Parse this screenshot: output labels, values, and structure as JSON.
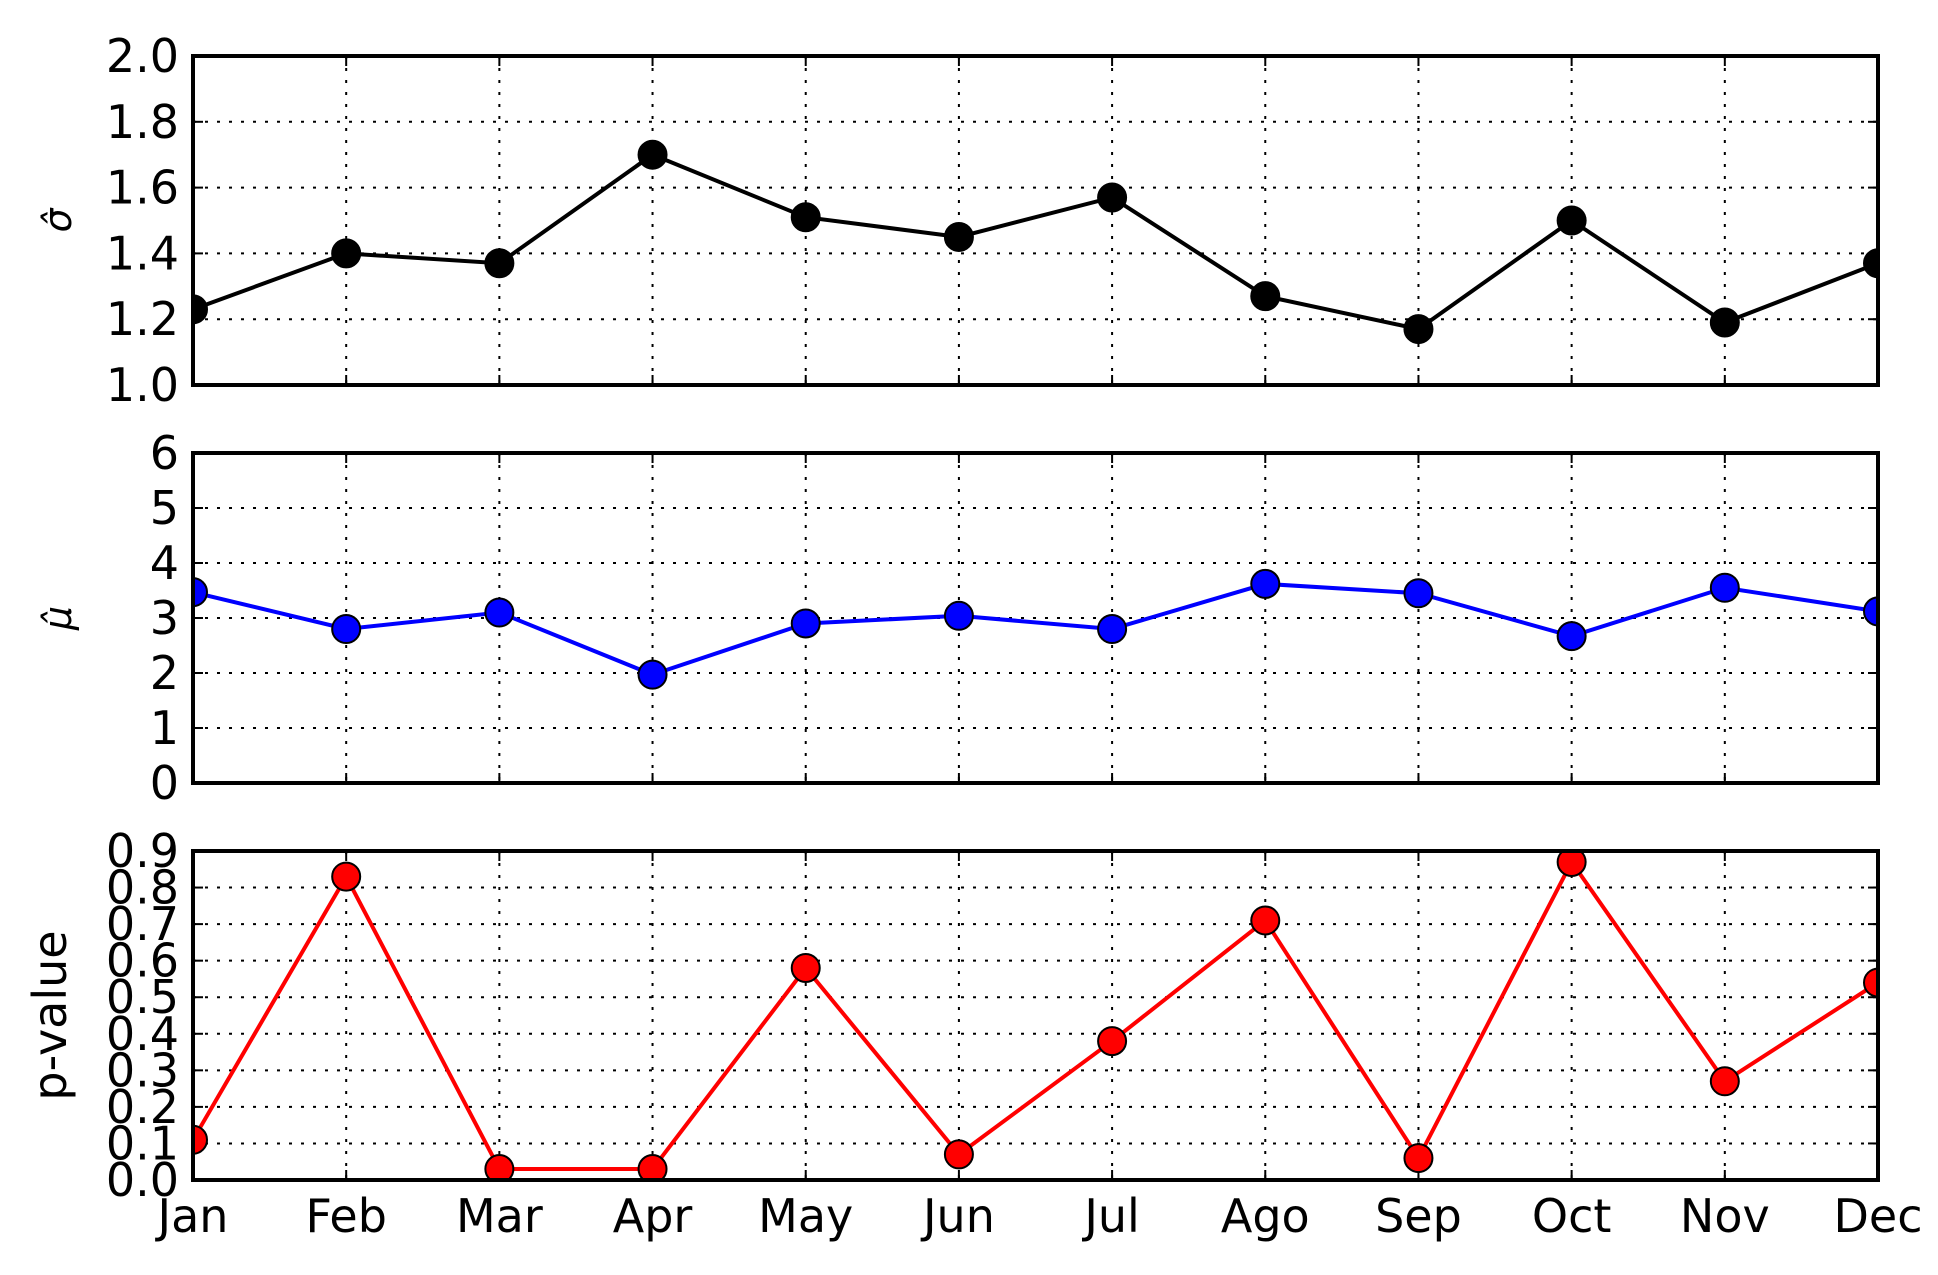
{
  "chart_data": [
    {
      "type": "line",
      "categories": [
        "Jan",
        "Feb",
        "Mar",
        "Apr",
        "May",
        "Jun",
        "Jul",
        "Ago",
        "Sep",
        "Oct",
        "Nov",
        "Dec"
      ],
      "ylabel": "σ̂",
      "ylim": [
        1.0,
        2.0
      ],
      "yticks": [
        "1.0",
        "1.2",
        "1.4",
        "1.6",
        "1.8",
        "2.0"
      ],
      "grid": true,
      "series": [
        {
          "color": "#000000",
          "marker_color": "#000000",
          "values": [
            1.23,
            1.4,
            1.37,
            1.7,
            1.51,
            1.45,
            1.57,
            1.27,
            1.17,
            1.5,
            1.19,
            1.37
          ]
        }
      ]
    },
    {
      "type": "line",
      "categories": [
        "Jan",
        "Feb",
        "Mar",
        "Apr",
        "May",
        "Jun",
        "Jul",
        "Ago",
        "Sep",
        "Oct",
        "Nov",
        "Dec"
      ],
      "ylabel": "μ̂",
      "ylim": [
        0,
        6
      ],
      "yticks": [
        "0",
        "1",
        "2",
        "3",
        "4",
        "5",
        "6"
      ],
      "grid": true,
      "series": [
        {
          "color": "#0000ff",
          "marker_color": "#0000ff",
          "values": [
            3.47,
            2.8,
            3.1,
            1.97,
            2.9,
            3.04,
            2.8,
            3.62,
            3.45,
            2.67,
            3.55,
            3.12
          ]
        }
      ]
    },
    {
      "type": "line",
      "categories": [
        "Jan",
        "Feb",
        "Mar",
        "Apr",
        "May",
        "Jun",
        "Jul",
        "Ago",
        "Sep",
        "Oct",
        "Nov",
        "Dec"
      ],
      "xticks": [
        "Jan",
        "Feb",
        "Mar",
        "Apr",
        "May",
        "Jun",
        "Jul",
        "Ago",
        "Sep",
        "Oct",
        "Nov",
        "Dec"
      ],
      "ylabel": "p-value",
      "ylim": [
        0.0,
        0.9
      ],
      "yticks": [
        "0.0",
        "0.1",
        "0.2",
        "0.3",
        "0.4",
        "0.5",
        "0.6",
        "0.7",
        "0.8",
        "0.9"
      ],
      "grid": true,
      "series": [
        {
          "color": "#ff0000",
          "marker_color": "#ff0000",
          "values": [
            0.11,
            0.83,
            0.03,
            0.03,
            0.58,
            0.07,
            0.38,
            0.71,
            0.06,
            0.87,
            0.27,
            0.54
          ]
        }
      ]
    }
  ]
}
